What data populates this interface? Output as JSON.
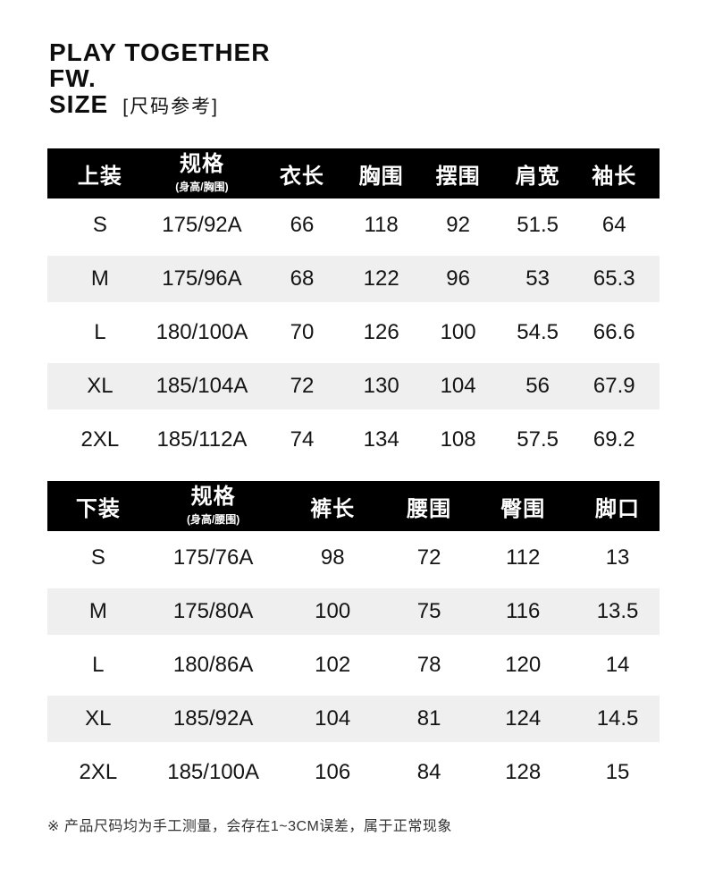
{
  "brand": {
    "line1": "PLAY TOGETHER",
    "line2": "FW.",
    "line3": "SIZE",
    "size_ref": "[尺码参考]"
  },
  "tables": [
    {
      "name": "tops",
      "header": {
        "col0": "上装",
        "spec_title": "规格",
        "spec_sub": "(身高/胸围)",
        "cols": [
          "衣长",
          "胸围",
          "摆围",
          "肩宽",
          "袖长"
        ]
      },
      "rows": [
        [
          "S",
          "175/92A",
          "66",
          "118",
          "92",
          "51.5",
          "64"
        ],
        [
          "M",
          "175/96A",
          "68",
          "122",
          "96",
          "53",
          "65.3"
        ],
        [
          "L",
          "180/100A",
          "70",
          "126",
          "100",
          "54.5",
          "66.6"
        ],
        [
          "XL",
          "185/104A",
          "72",
          "130",
          "104",
          "56",
          "67.9"
        ],
        [
          "2XL",
          "185/112A",
          "74",
          "134",
          "108",
          "57.5",
          "69.2"
        ]
      ]
    },
    {
      "name": "bottoms",
      "header": {
        "col0": "下装",
        "spec_title": "规格",
        "spec_sub": "(身高/腰围)",
        "cols": [
          "裤长",
          "腰围",
          "臀围",
          "脚口"
        ]
      },
      "rows": [
        [
          "S",
          "175/76A",
          "98",
          "72",
          "112",
          "13"
        ],
        [
          "M",
          "175/80A",
          "100",
          "75",
          "116",
          "13.5"
        ],
        [
          "L",
          "180/86A",
          "102",
          "78",
          "120",
          "14"
        ],
        [
          "XL",
          "185/92A",
          "104",
          "81",
          "124",
          "14.5"
        ],
        [
          "2XL",
          "185/100A",
          "106",
          "84",
          "128",
          "15"
        ]
      ]
    }
  ],
  "footnote": "※ 产品尺码均为手工测量，会存在1~3CM误差，属于正常现象",
  "colors": {
    "header_bg": "#000000",
    "header_text": "#ffffff",
    "row_alt_bg": "#efefef",
    "text": "#141414"
  }
}
